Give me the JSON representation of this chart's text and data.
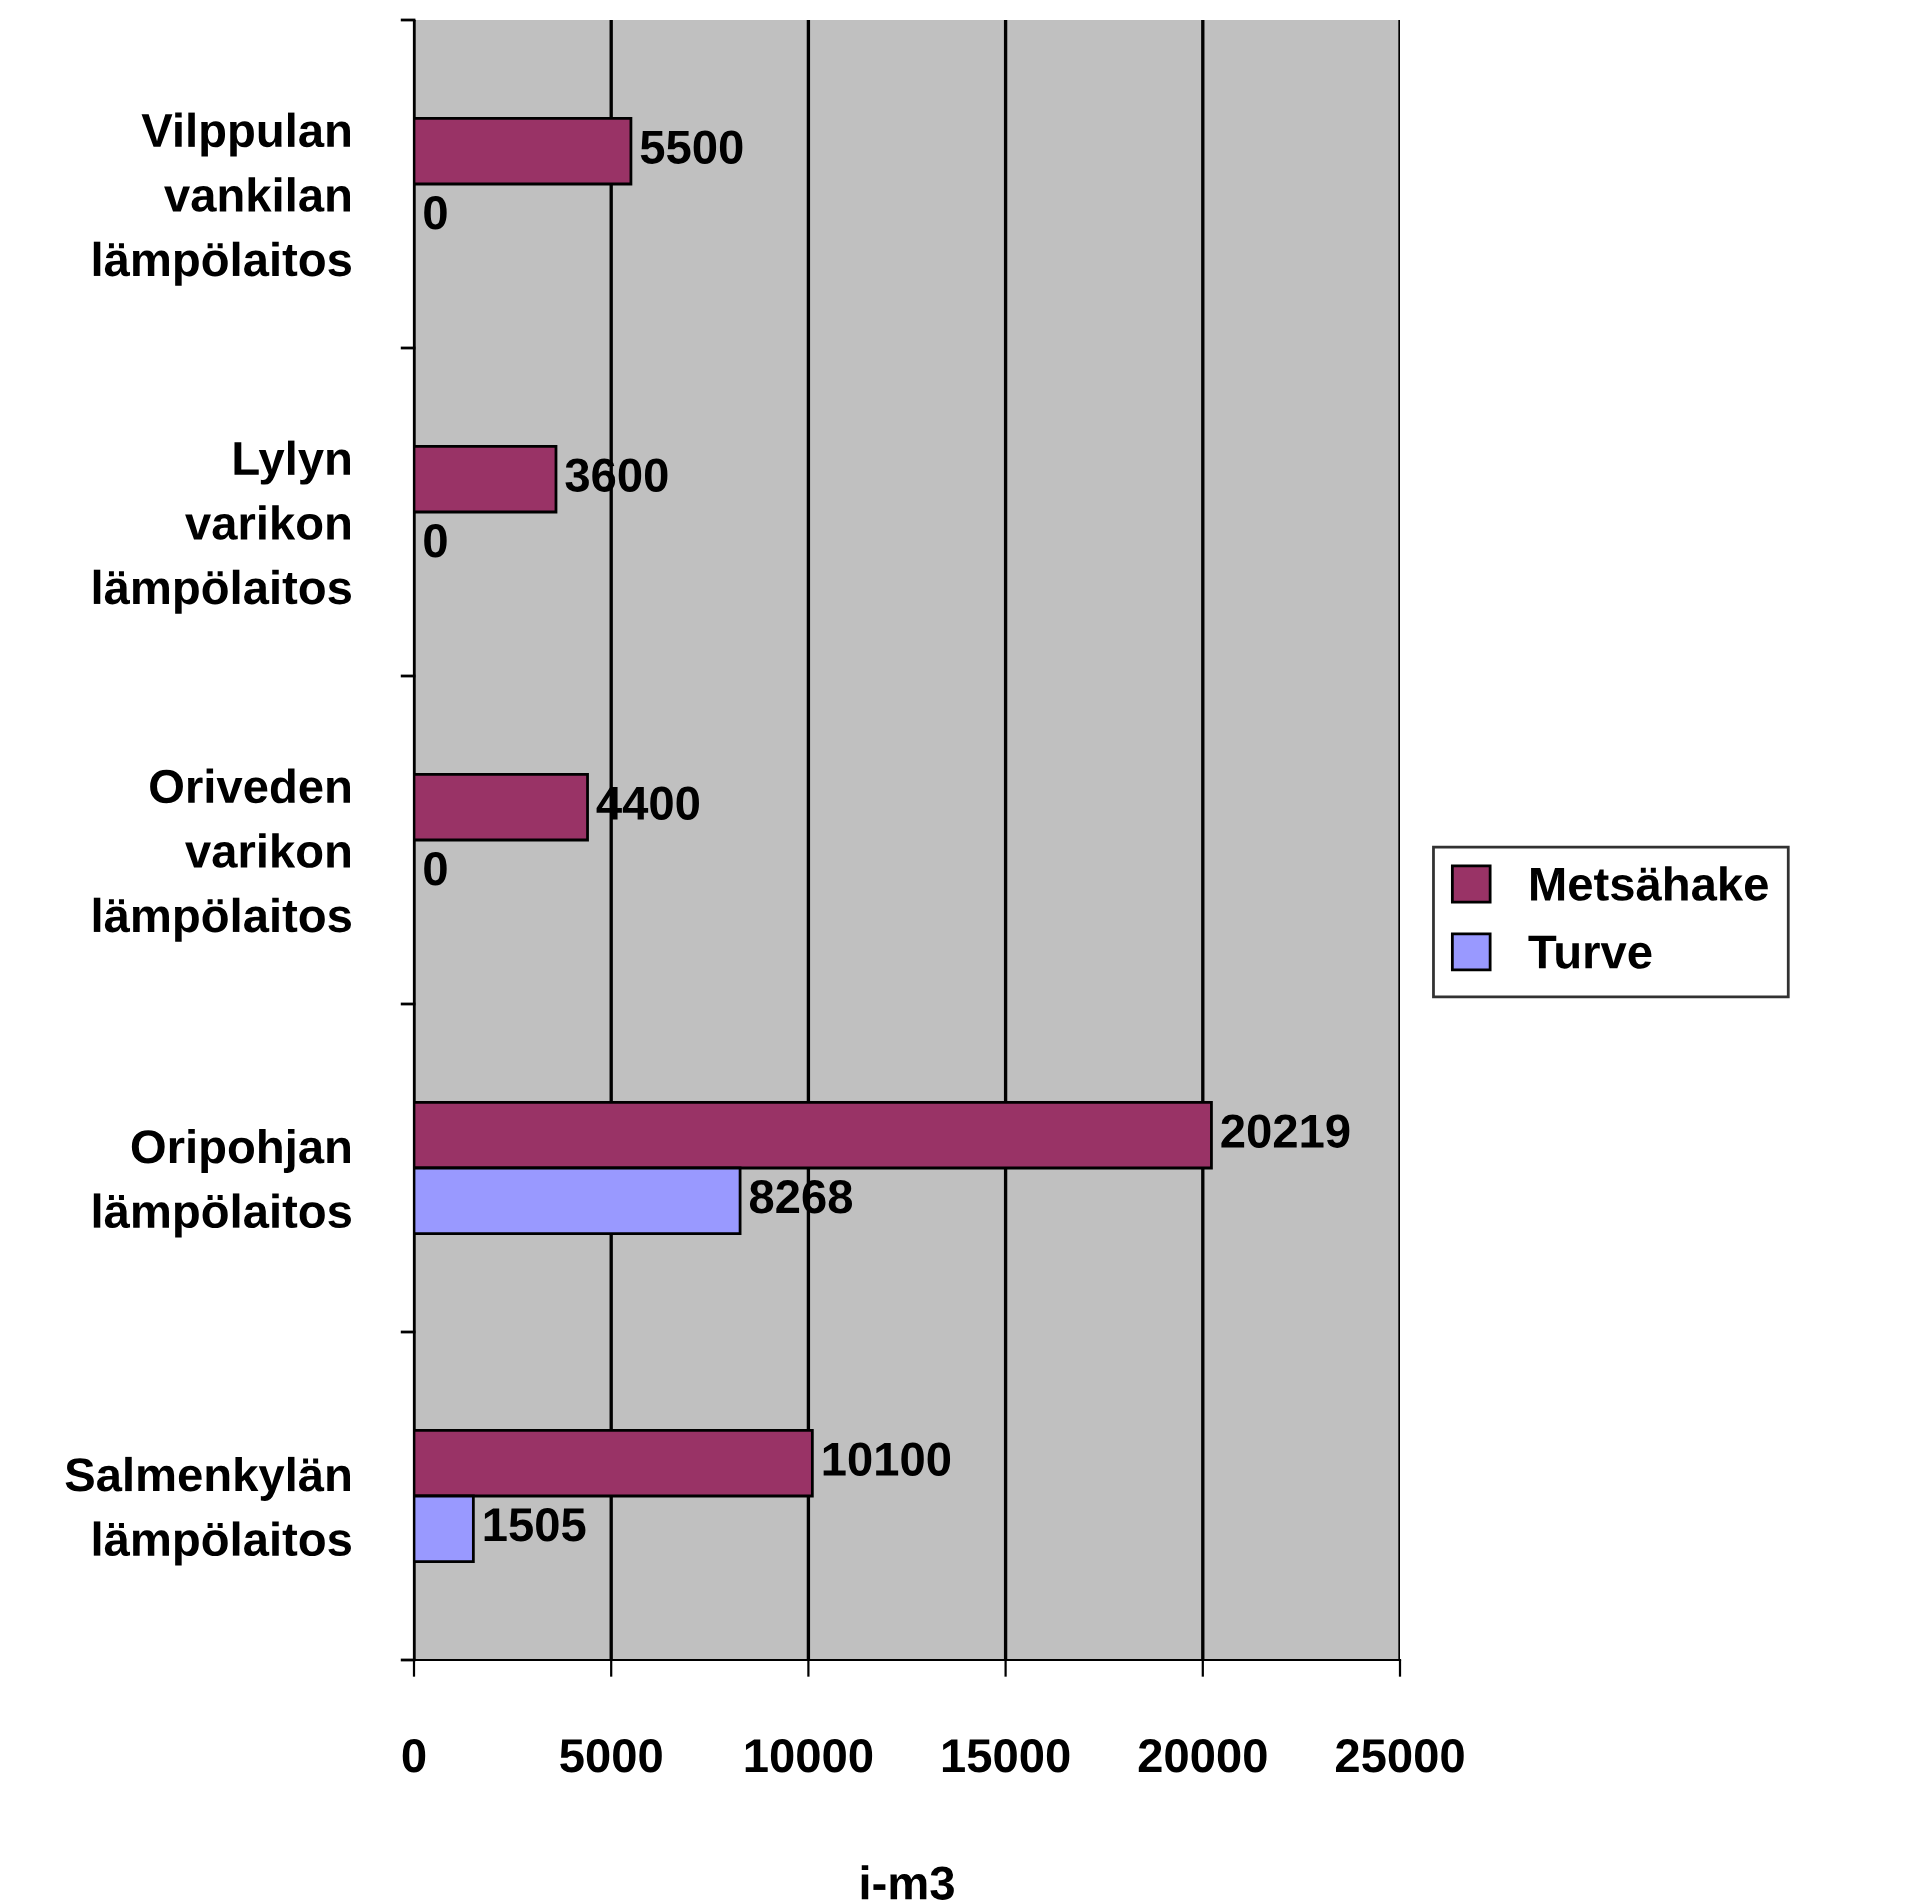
{
  "chart_data": {
    "type": "bar",
    "orientation": "horizontal",
    "xlabel": "i-m3",
    "categories": [
      "Vilppulan\nvankilan\nlämpölaitos",
      "Lylyn\nvarikon\nlämpölaitos",
      "Oriveden\nvarikon\nlämpölaitos",
      "Oripohjan\nlämpölaitos",
      "Salmenkylän\nlämpölaitos"
    ],
    "series": [
      {
        "name": "Metsähake",
        "color": "#993366",
        "values": [
          5500,
          3600,
          4400,
          20219,
          10100
        ]
      },
      {
        "name": "Turve",
        "color": "#9999ff",
        "values": [
          0,
          0,
          0,
          8268,
          1505
        ]
      }
    ],
    "xlim": [
      0,
      25000
    ],
    "xticks": [
      0,
      5000,
      10000,
      15000,
      20000,
      25000
    ],
    "grid": "x",
    "legend": "right",
    "data_labels": true
  }
}
